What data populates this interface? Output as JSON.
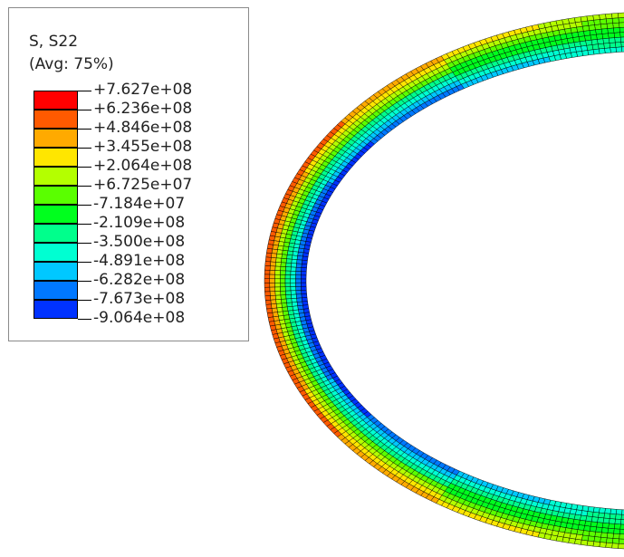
{
  "viewport": {
    "legend": {
      "variable": "S, S22",
      "averaging": "(Avg: 75%)",
      "levels": [
        {
          "label": "+7.627e+08",
          "color": "#ff0000"
        },
        {
          "label": "+6.236e+08",
          "color": "#ff5a00"
        },
        {
          "label": "+4.846e+08",
          "color": "#ffaa00"
        },
        {
          "label": "+3.455e+08",
          "color": "#ffe600"
        },
        {
          "label": "+2.064e+08",
          "color": "#b4ff00"
        },
        {
          "label": "+6.725e+07",
          "color": "#5aff00"
        },
        {
          "label": "-7.184e+07",
          "color": "#00ff1e"
        },
        {
          "label": "-2.109e+08",
          "color": "#00ff8c"
        },
        {
          "label": "-3.500e+08",
          "color": "#00ffd2"
        },
        {
          "label": "-4.891e+08",
          "color": "#00c8ff"
        },
        {
          "label": "-6.282e+08",
          "color": "#0078ff"
        },
        {
          "label": "-7.673e+08",
          "color": "#0032ff"
        },
        {
          "label": "-9.064e+08",
          "color": "#0000e6"
        }
      ]
    },
    "model": {
      "name": "stressed-ring-mesh",
      "contour_colors": [
        "#0000e6",
        "#0032ff",
        "#0078ff",
        "#00c8ff",
        "#00ffd2",
        "#00ff8c",
        "#00ff1e",
        "#5aff00",
        "#b4ff00",
        "#ffe600",
        "#ffaa00",
        "#ff5a00",
        "#ff0000"
      ],
      "edge_color": "#000000"
    }
  }
}
